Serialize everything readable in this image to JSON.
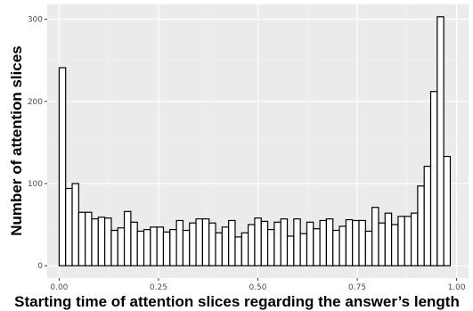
{
  "colors": {
    "panel_background": "#ebebeb",
    "grid_major": "#ffffff",
    "grid_minor": "#f4f4f4",
    "bar_fill": "#ffffff",
    "bar_outline": "#000000",
    "tick_text": "#4d4d4d"
  },
  "chart_data": {
    "type": "bar",
    "subtype": "histogram",
    "title": "",
    "xlabel": "Starting time of attention slices regarding the answer’s length",
    "ylabel": "Number of attention slices",
    "xlim": [
      -0.03,
      1.03
    ],
    "ylim": [
      -15,
      318
    ],
    "x_ticks": [
      0.0,
      0.25,
      0.5,
      0.75,
      1.0
    ],
    "x_tick_labels": [
      "0.00",
      "0.25",
      "0.50",
      "0.75",
      "1.00"
    ],
    "y_ticks": [
      0,
      100,
      200,
      300
    ],
    "y_tick_labels": [
      "0",
      "100",
      "200",
      "300"
    ],
    "grid": true,
    "legend": "none",
    "bin_range": [
      0.0,
      1.0
    ],
    "bin_width": 0.0164,
    "values": [
      241,
      94,
      100,
      65,
      65,
      57,
      59,
      58,
      43,
      46,
      66,
      53,
      42,
      44,
      47,
      47,
      41,
      44,
      55,
      43,
      52,
      57,
      57,
      52,
      40,
      47,
      55,
      35,
      40,
      50,
      58,
      54,
      44,
      53,
      57,
      36,
      57,
      39,
      53,
      45,
      55,
      57,
      43,
      48,
      56,
      55,
      55,
      42,
      71,
      52,
      64,
      50,
      60,
      60,
      64,
      97,
      121,
      212,
      303,
      133
    ]
  }
}
